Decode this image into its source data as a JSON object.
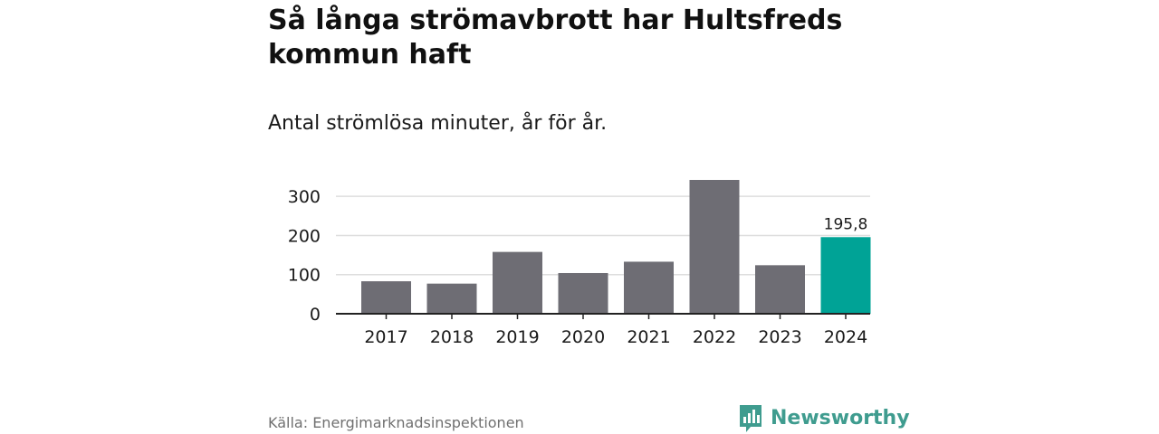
{
  "header": {
    "title": "Så långa strömavbrott har Hultsfreds kommun haft",
    "subtitle": "Antal strömlösa minuter, år för år."
  },
  "footer": {
    "source": "Källa: Energimarknadsinspektionen",
    "brand": "Newsworthy"
  },
  "colors": {
    "bar": "#6e6d74",
    "highlight": "#00a396",
    "grid": "#dddddd",
    "axis": "#222222",
    "brand": "#3f9c8f"
  },
  "icons": {
    "logo": "newsworthy-logo-icon"
  },
  "chart_data": {
    "type": "bar",
    "title": "Så långa strömavbrott har Hultsfreds kommun haft",
    "subtitle": "Antal strömlösa minuter, år för år.",
    "xlabel": "",
    "ylabel": "",
    "categories": [
      "2017",
      "2018",
      "2019",
      "2020",
      "2021",
      "2022",
      "2023",
      "2024"
    ],
    "values": [
      83,
      77,
      158,
      104,
      133,
      342,
      124,
      195.8
    ],
    "highlight_index": 7,
    "data_labels": [
      {
        "index": 7,
        "text": "195,8"
      }
    ],
    "yticks": [
      0,
      100,
      200,
      300
    ],
    "ylim": [
      0,
      342
    ],
    "grid": true
  }
}
